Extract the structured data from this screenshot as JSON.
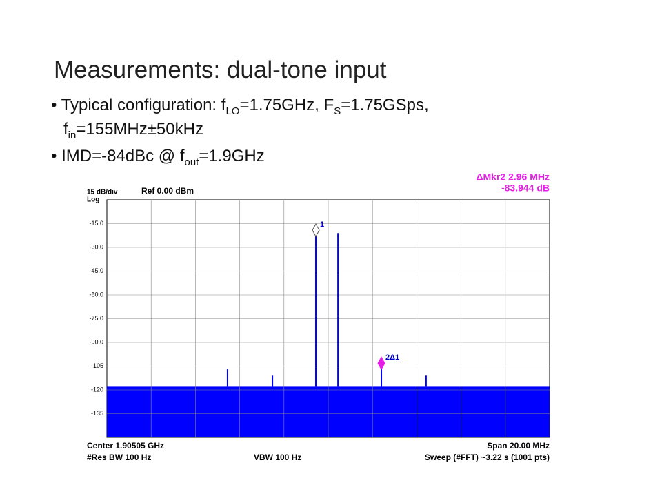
{
  "slide": {
    "title": "Measurements: dual-tone input",
    "bullets": [
      [
        [
          "Typical configuration: f",
          "LO",
          "=1.75GHz, F",
          "S",
          "=1.75GSps,"
        ],
        [
          "f",
          "in",
          "=155MHz±50kHz"
        ]
      ],
      [
        [
          "IMD=-84dBc @ f",
          "out",
          "=1.9GHz"
        ]
      ]
    ]
  },
  "chart_data": {
    "type": "spectrum",
    "scale_label": "15 dB/div",
    "scale_type": "Log",
    "ref_label": "Ref 0.00 dBm",
    "marker_readout": [
      "ΔMkr2 2.96 MHz",
      "-83.944 dB"
    ],
    "footer": [
      "Center 1.90505 GHz",
      "Span 20.00 MHz",
      "#Res BW 100 Hz",
      "VBW 100 Hz",
      "Sweep (#FFT)  ~3.22 s (1001 pts)"
    ],
    "xlim": [
      1.89505,
      1.91505
    ],
    "ylim": [
      -150,
      0
    ],
    "yticks": [
      {
        "value": -15,
        "label": "-15.0"
      },
      {
        "value": -30,
        "label": "-30.0"
      },
      {
        "value": -45,
        "label": "-45.0"
      },
      {
        "value": -60,
        "label": "-60.0"
      },
      {
        "value": -75,
        "label": "-75.0"
      },
      {
        "value": -90,
        "label": "-90.0"
      },
      -105,
      -120,
      -135
    ],
    "x": [
      1.9005,
      1.90253,
      1.90449,
      1.90549,
      1.90745,
      1.90947
    ],
    "values": [
      -107,
      -111,
      -20.9,
      -21,
      -104.9,
      -111
    ],
    "noise_floor": -118,
    "color": "#0000ff",
    "grid": true,
    "markers": [
      {
        "label": "1",
        "x": 1.90449,
        "value": -20.9
      },
      {
        "label": "2Δ1",
        "x": 1.90745,
        "value": -104.9
      }
    ],
    "marker_colors": [
      "#ffffff",
      "#e61ee6"
    ]
  }
}
